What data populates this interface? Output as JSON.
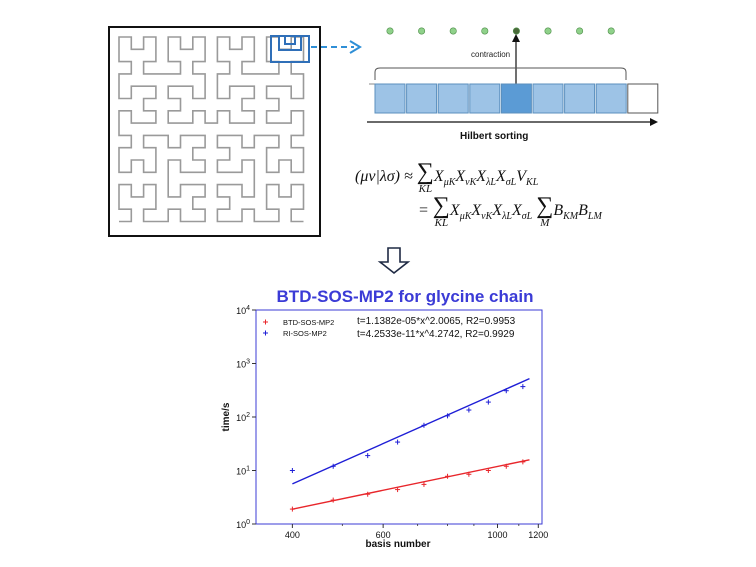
{
  "diagram": {
    "contraction_label": "contraction",
    "hilbert_label": "Hilbert sorting",
    "equation": {
      "line1_lhs": "(μν|λσ) ≈",
      "line2_prefix": "=",
      "sum_symbol": "∑",
      "sum_index_1": "KL",
      "sum_index_2": "M",
      "terms_1": "X",
      "terms_1_subs": [
        "μK",
        "νK",
        "λL",
        "σL"
      ],
      "v_term": "V",
      "v_sub": "KL",
      "b_term": "B",
      "b_subs": [
        "KM",
        "LM"
      ]
    }
  },
  "chart_data": {
    "type": "scatter",
    "title": "BTD-SOS-MP2 for glycine chain",
    "xlabel": "basis number",
    "ylabel": "time/s",
    "x_scale": "log",
    "y_scale": "log",
    "xlim": [
      340,
      1220
    ],
    "ylim": [
      1,
      10000
    ],
    "x_ticks": [
      400,
      600,
      1000,
      1200
    ],
    "y_ticks": [
      "10^0",
      "10^1",
      "10^2",
      "10^3",
      "10^4"
    ],
    "legend_position": "top-left",
    "series": [
      {
        "name": "BTD-SOS-MP2",
        "color": "#e8262b",
        "fit_text": "t=1.1382e-05*x^2.0065, R2=0.9953",
        "fit": {
          "a": 1.1382e-05,
          "b": 2.0065
        },
        "x": [
          400,
          480,
          560,
          640,
          720,
          800,
          880,
          960,
          1040,
          1120
        ],
        "y": [
          1.9,
          2.8,
          3.6,
          4.4,
          5.5,
          7.8,
          8.5,
          10.0,
          12.0,
          14.5
        ]
      },
      {
        "name": "RI-SOS-MP2",
        "color": "#1e1ed6",
        "fit_text": "t=4.2533e-11*x^4.2742, R2=0.9929",
        "fit": {
          "a": 4.2533e-11,
          "b": 4.2742
        },
        "x": [
          400,
          480,
          560,
          640,
          720,
          800,
          880,
          960,
          1040,
          1120
        ],
        "y": [
          10,
          12,
          19,
          34,
          70,
          105,
          135,
          190,
          310,
          370
        ]
      }
    ]
  }
}
